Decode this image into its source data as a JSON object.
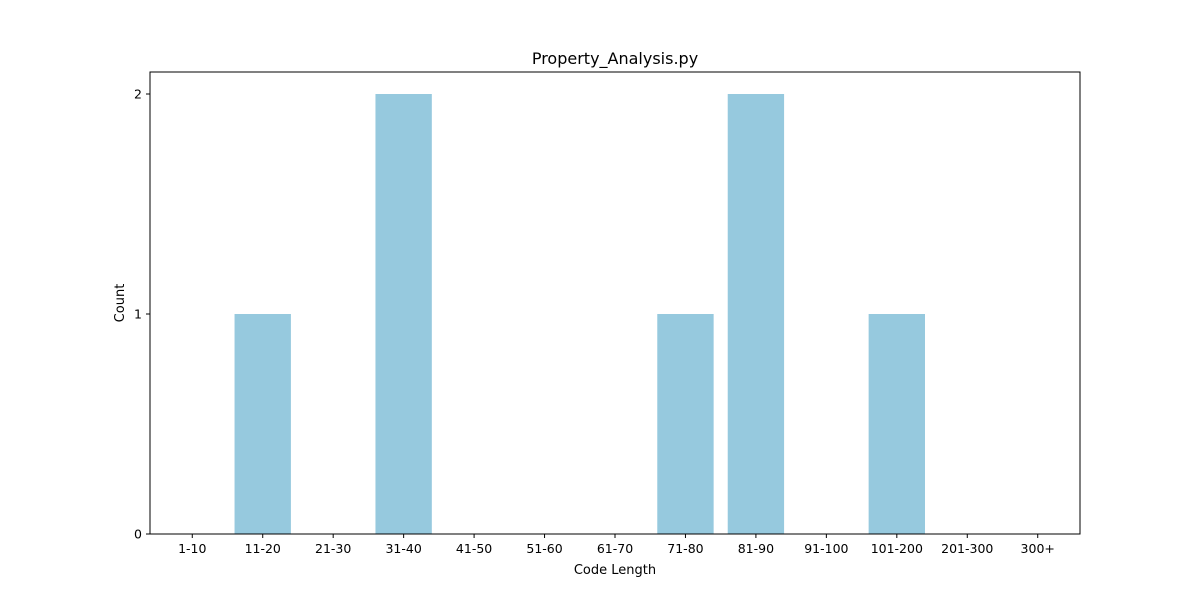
{
  "chart_data": {
    "type": "bar",
    "title": "Property_Analysis.py",
    "xlabel": "Code Length",
    "ylabel": "Count",
    "categories": [
      "1-10",
      "11-20",
      "21-30",
      "31-40",
      "41-50",
      "51-60",
      "61-70",
      "71-80",
      "81-90",
      "91-100",
      "101-200",
      "201-300",
      "300+"
    ],
    "values": [
      0,
      1,
      0,
      2,
      0,
      0,
      0,
      1,
      2,
      0,
      1,
      0,
      0
    ],
    "yticks": [
      0,
      1,
      2
    ],
    "ylim": [
      0,
      2.1
    ],
    "grid": false,
    "legend": "none",
    "bar_color": "#96c9de"
  }
}
